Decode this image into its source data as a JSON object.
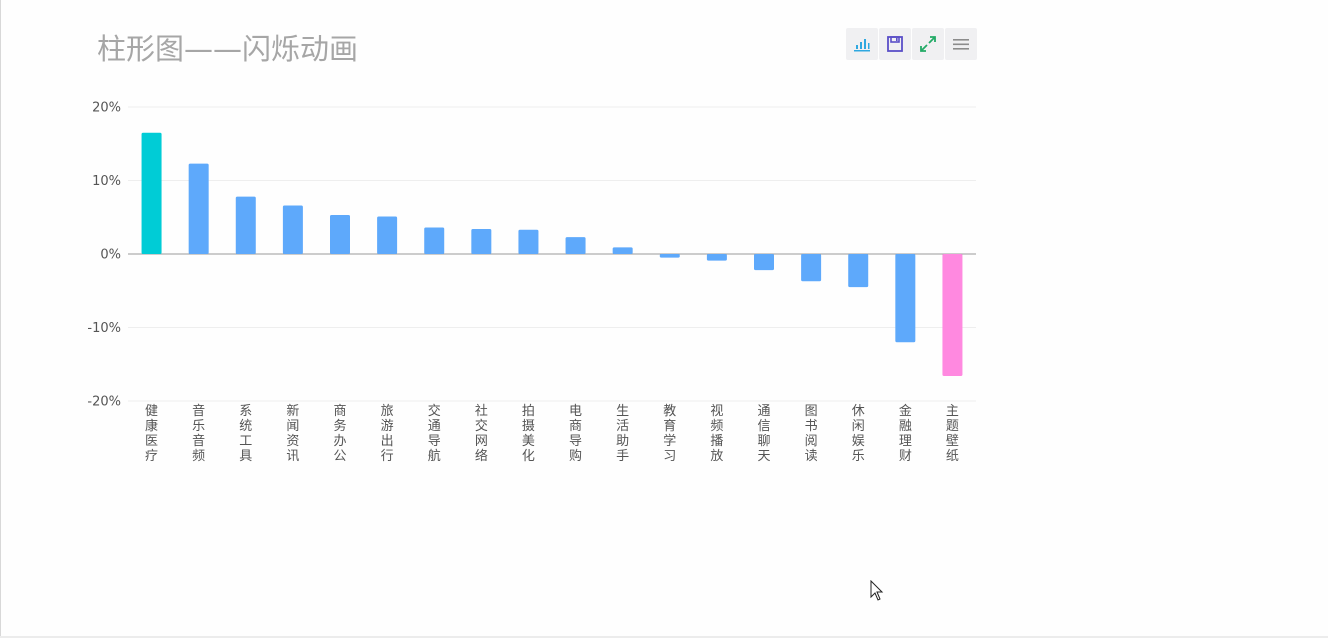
{
  "chart_data": {
    "type": "bar",
    "title": "柱形图——闪烁动画",
    "categories": [
      "健康医疗",
      "音乐音频",
      "系统工具",
      "新闻资讯",
      "商务办公",
      "旅游出行",
      "交通导航",
      "社交网络",
      "拍摄美化",
      "电商导购",
      "生活助手",
      "教育学习",
      "视频播放",
      "通信聊天",
      "图书阅读",
      "休闲娱乐",
      "金融理财",
      "主题壁纸"
    ],
    "values": [
      16.5,
      12.3,
      7.8,
      6.6,
      5.3,
      5.1,
      3.6,
      3.4,
      3.3,
      2.3,
      0.9,
      -0.5,
      -0.9,
      -2.2,
      -3.7,
      -4.5,
      -12.0,
      -16.6
    ],
    "yticks": [
      "20%",
      "10%",
      "0%",
      "-10%",
      "-20%"
    ],
    "ylim": [
      -20,
      20
    ],
    "grid": true,
    "colors": {
      "default": "#5ea9fb",
      "max": "#00ccd6",
      "min": "#ff89e0"
    }
  },
  "toolbox": [
    {
      "name": "magic-type-icon",
      "color": "#2fa8e0"
    },
    {
      "name": "save-icon",
      "color": "#5a4fc7"
    },
    {
      "name": "fullscreen-icon",
      "color": "#22aa66"
    },
    {
      "name": "menu-icon",
      "color": "#8c8c8c"
    }
  ]
}
